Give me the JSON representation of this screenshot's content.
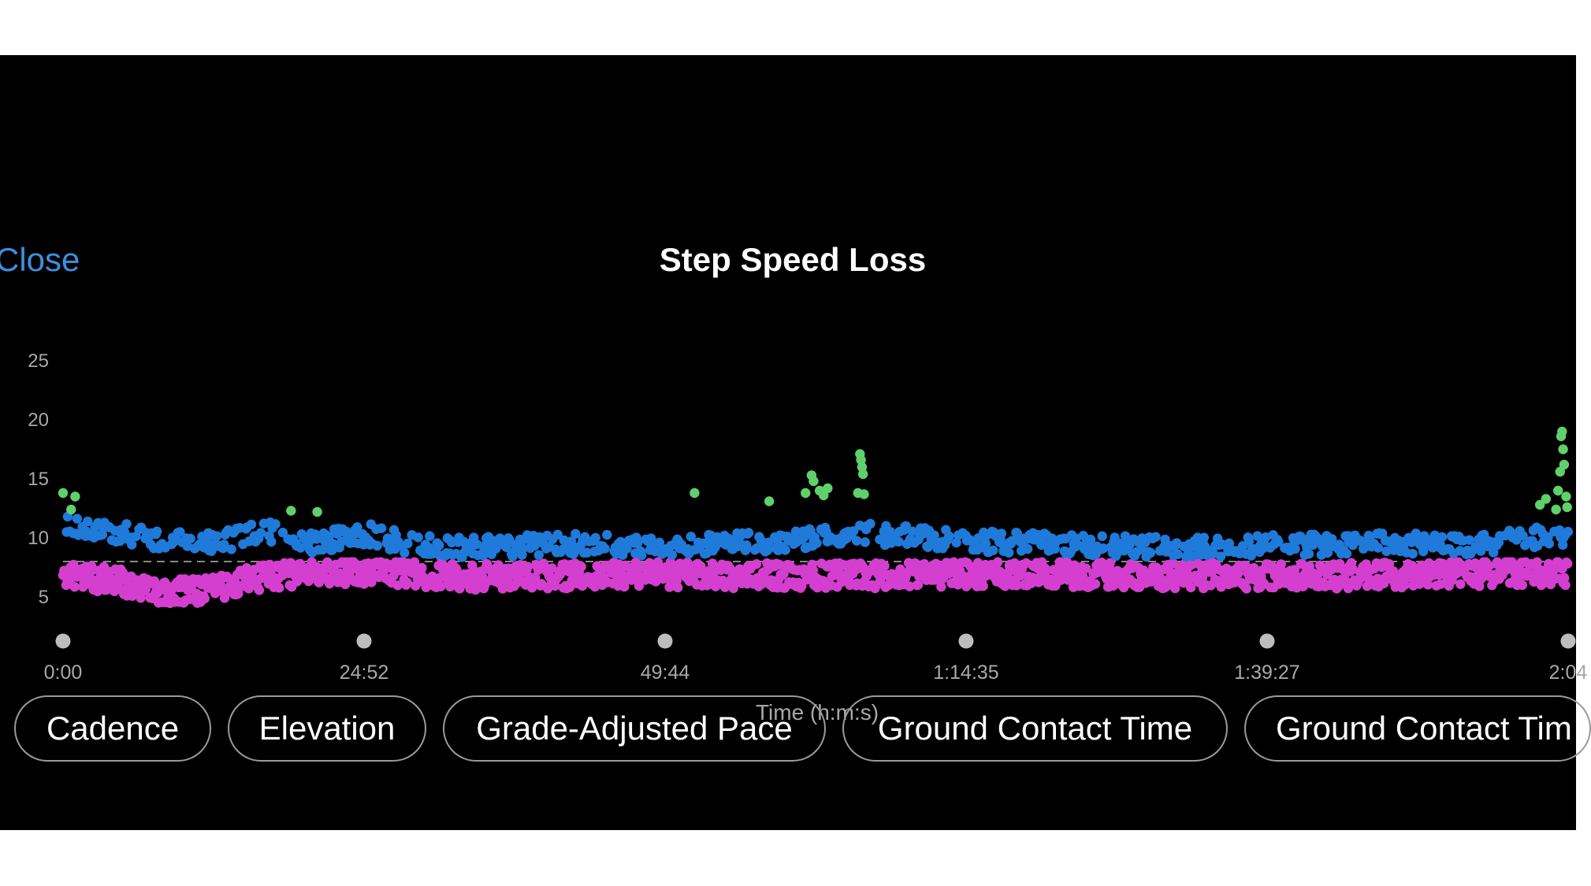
{
  "header": {
    "close_label": "Close",
    "title": "Step Speed Loss"
  },
  "metric_chips": [
    "Cadence",
    "Elevation",
    "Grade-Adjusted Pace",
    "Ground Contact Time",
    "Ground Contact Tim"
  ],
  "chart_data": {
    "type": "scatter",
    "title": "Step Speed Loss",
    "xlabel": "Time (h:m:s)",
    "ylabel": "",
    "x_tick_labels": [
      "0:00",
      "24:52",
      "49:44",
      "1:14:35",
      "1:39:27",
      "2:04"
    ],
    "y_ticks": [
      5,
      10,
      15,
      20,
      25
    ],
    "xlim_seconds": [
      0,
      7460
    ],
    "ylim": [
      2,
      27
    ],
    "reference_line": 8,
    "legend": "none",
    "colors": {
      "above_high": "#5fd16a",
      "above": "#1f7ad9",
      "below": "#d43fd0",
      "reference": "#888888",
      "tick_marker": "#bdbdbd",
      "axis_text": "#a8a8a8"
    },
    "color_bands": {
      "high_threshold": 12,
      "reference": 8
    },
    "profile": [
      {
        "t": 0,
        "above_mean": 11.0,
        "below_mean": 6.8
      },
      {
        "t": 250,
        "above_mean": 10.2,
        "below_mean": 6.4
      },
      {
        "t": 500,
        "above_mean": 9.5,
        "below_mean": 5.4
      },
      {
        "t": 750,
        "above_mean": 9.2,
        "below_mean": 5.6
      },
      {
        "t": 1000,
        "above_mean": 10.3,
        "below_mean": 6.8
      },
      {
        "t": 1250,
        "above_mean": 9.2,
        "below_mean": 7.0
      },
      {
        "t": 1500,
        "above_mean": 10.0,
        "below_mean": 7.2
      },
      {
        "t": 1750,
        "above_mean": 9.0,
        "below_mean": 6.9
      },
      {
        "t": 2000,
        "above_mean": 8.8,
        "below_mean": 6.7
      },
      {
        "t": 2500,
        "above_mean": 9.1,
        "below_mean": 6.8
      },
      {
        "t": 3000,
        "above_mean": 9.0,
        "below_mean": 6.9
      },
      {
        "t": 3500,
        "above_mean": 9.3,
        "below_mean": 6.8
      },
      {
        "t": 4000,
        "above_mean": 10.0,
        "below_mean": 6.8
      },
      {
        "t": 4500,
        "above_mean": 9.4,
        "below_mean": 7.0
      },
      {
        "t": 5000,
        "above_mean": 9.0,
        "below_mean": 6.9
      },
      {
        "t": 5500,
        "above_mean": 8.9,
        "below_mean": 6.8
      },
      {
        "t": 6000,
        "above_mean": 9.0,
        "below_mean": 6.8
      },
      {
        "t": 6500,
        "above_mean": 9.2,
        "below_mean": 6.8
      },
      {
        "t": 7000,
        "above_mean": 9.0,
        "below_mean": 7.0
      },
      {
        "t": 7460,
        "above_mean": 10.0,
        "below_mean": 7.0
      }
    ],
    "highlights": [
      {
        "t": 0,
        "y": 13.8
      },
      {
        "t": 60,
        "y": 13.5
      },
      {
        "t": 40,
        "y": 12.4
      },
      {
        "t": 1130,
        "y": 12.3
      },
      {
        "t": 1260,
        "y": 12.2
      },
      {
        "t": 3130,
        "y": 13.8
      },
      {
        "t": 3500,
        "y": 13.1
      },
      {
        "t": 3710,
        "y": 15.3
      },
      {
        "t": 3720,
        "y": 14.8
      },
      {
        "t": 3750,
        "y": 14.0
      },
      {
        "t": 3680,
        "y": 13.8
      },
      {
        "t": 3770,
        "y": 13.6
      },
      {
        "t": 3790,
        "y": 14.2
      },
      {
        "t": 3950,
        "y": 17.1
      },
      {
        "t": 3955,
        "y": 16.6
      },
      {
        "t": 3960,
        "y": 16.0
      },
      {
        "t": 3965,
        "y": 15.4
      },
      {
        "t": 3940,
        "y": 13.8
      },
      {
        "t": 3970,
        "y": 13.7
      },
      {
        "t": 7320,
        "y": 12.8
      },
      {
        "t": 7350,
        "y": 13.3
      },
      {
        "t": 7400,
        "y": 12.4
      },
      {
        "t": 7410,
        "y": 14.0
      },
      {
        "t": 7420,
        "y": 15.6
      },
      {
        "t": 7425,
        "y": 18.6
      },
      {
        "t": 7430,
        "y": 19.0
      },
      {
        "t": 7435,
        "y": 17.5
      },
      {
        "t": 7440,
        "y": 16.2
      },
      {
        "t": 7450,
        "y": 13.5
      },
      {
        "t": 7455,
        "y": 12.6
      }
    ],
    "dip_minima": [
      {
        "t": 680,
        "y": 4.6
      }
    ]
  }
}
